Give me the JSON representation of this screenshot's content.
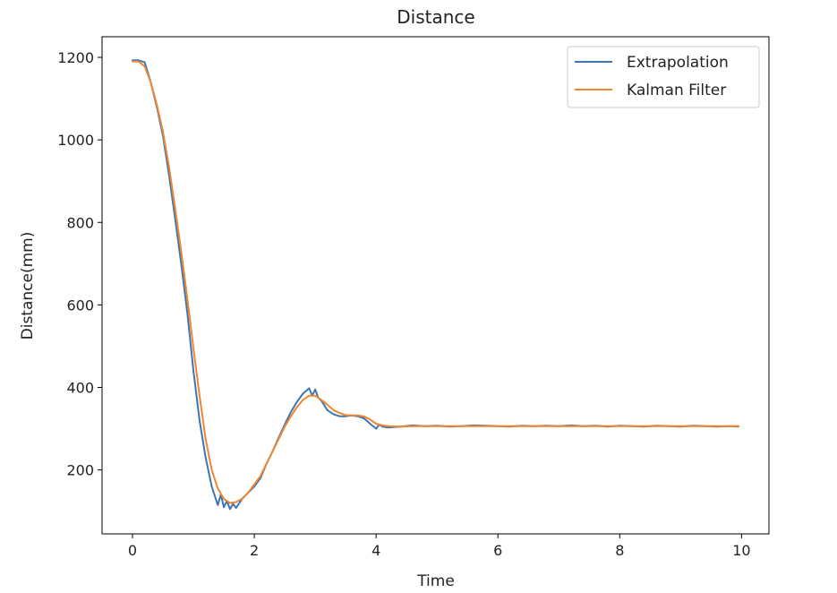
{
  "chart_data": {
    "type": "line",
    "title": "Distance",
    "xlabel": "Time",
    "ylabel": "Distance(mm)",
    "xlim": [
      -0.5,
      10.45
    ],
    "ylim": [
      45,
      1250
    ],
    "xticks": [
      0,
      2,
      4,
      6,
      8,
      10
    ],
    "yticks": [
      200,
      400,
      600,
      800,
      1000,
      1200
    ],
    "grid": false,
    "legend_position": "top-right",
    "series": [
      {
        "name": "Extrapolation",
        "color": "#3d76b0",
        "x": [
          0,
          0.1,
          0.2,
          0.3,
          0.4,
          0.5,
          0.6,
          0.7,
          0.8,
          0.9,
          1.0,
          1.1,
          1.2,
          1.3,
          1.4,
          1.45,
          1.5,
          1.55,
          1.6,
          1.65,
          1.7,
          1.8,
          1.9,
          2.0,
          2.1,
          2.2,
          2.3,
          2.4,
          2.5,
          2.6,
          2.7,
          2.8,
          2.9,
          2.95,
          3.0,
          3.05,
          3.1,
          3.2,
          3.3,
          3.4,
          3.5,
          3.6,
          3.7,
          3.8,
          3.9,
          4.0,
          4.05,
          4.1,
          4.2,
          4.4,
          4.6,
          4.8,
          5.0,
          5.2,
          5.4,
          5.6,
          5.8,
          6.0,
          6.2,
          6.4,
          6.6,
          6.8,
          7.0,
          7.2,
          7.4,
          7.6,
          7.8,
          8.0,
          8.2,
          8.4,
          8.6,
          8.8,
          9.0,
          9.2,
          9.4,
          9.6,
          9.8,
          9.95
        ],
        "y": [
          1193,
          1193,
          1188,
          1140,
          1080,
          1010,
          915,
          810,
          700,
          580,
          440,
          320,
          230,
          160,
          115,
          140,
          110,
          125,
          105,
          118,
          108,
          130,
          145,
          160,
          180,
          215,
          245,
          278,
          310,
          340,
          365,
          385,
          398,
          380,
          395,
          375,
          368,
          345,
          335,
          330,
          330,
          332,
          330,
          325,
          312,
          300,
          310,
          305,
          303,
          305,
          308,
          306,
          307,
          305,
          306,
          308,
          307,
          306,
          305,
          307,
          306,
          307,
          306,
          308,
          306,
          307,
          305,
          307,
          306,
          305,
          307,
          306,
          305,
          307,
          306,
          305,
          306,
          305
        ]
      },
      {
        "name": "Kalman Filter",
        "color": "#f0862f",
        "x": [
          0,
          0.1,
          0.2,
          0.3,
          0.4,
          0.5,
          0.6,
          0.7,
          0.8,
          0.9,
          1.0,
          1.1,
          1.2,
          1.3,
          1.4,
          1.5,
          1.6,
          1.7,
          1.8,
          1.9,
          2.0,
          2.1,
          2.2,
          2.3,
          2.4,
          2.5,
          2.6,
          2.7,
          2.8,
          2.9,
          3.0,
          3.1,
          3.2,
          3.3,
          3.4,
          3.5,
          3.6,
          3.7,
          3.8,
          3.9,
          4.0,
          4.1,
          4.2,
          4.4,
          4.6,
          4.8,
          5.0,
          5.5,
          6.0,
          6.5,
          7.0,
          7.5,
          8.0,
          8.5,
          9.0,
          9.5,
          9.95
        ],
        "y": [
          1190,
          1190,
          1178,
          1140,
          1085,
          1020,
          935,
          835,
          730,
          615,
          495,
          380,
          275,
          200,
          155,
          130,
          120,
          122,
          130,
          145,
          165,
          185,
          215,
          245,
          275,
          305,
          330,
          352,
          370,
          380,
          380,
          370,
          358,
          345,
          338,
          333,
          332,
          332,
          330,
          322,
          312,
          308,
          306,
          305,
          306,
          306,
          306,
          306,
          306,
          306,
          306,
          306,
          306,
          306,
          306,
          306,
          306
        ]
      }
    ]
  }
}
